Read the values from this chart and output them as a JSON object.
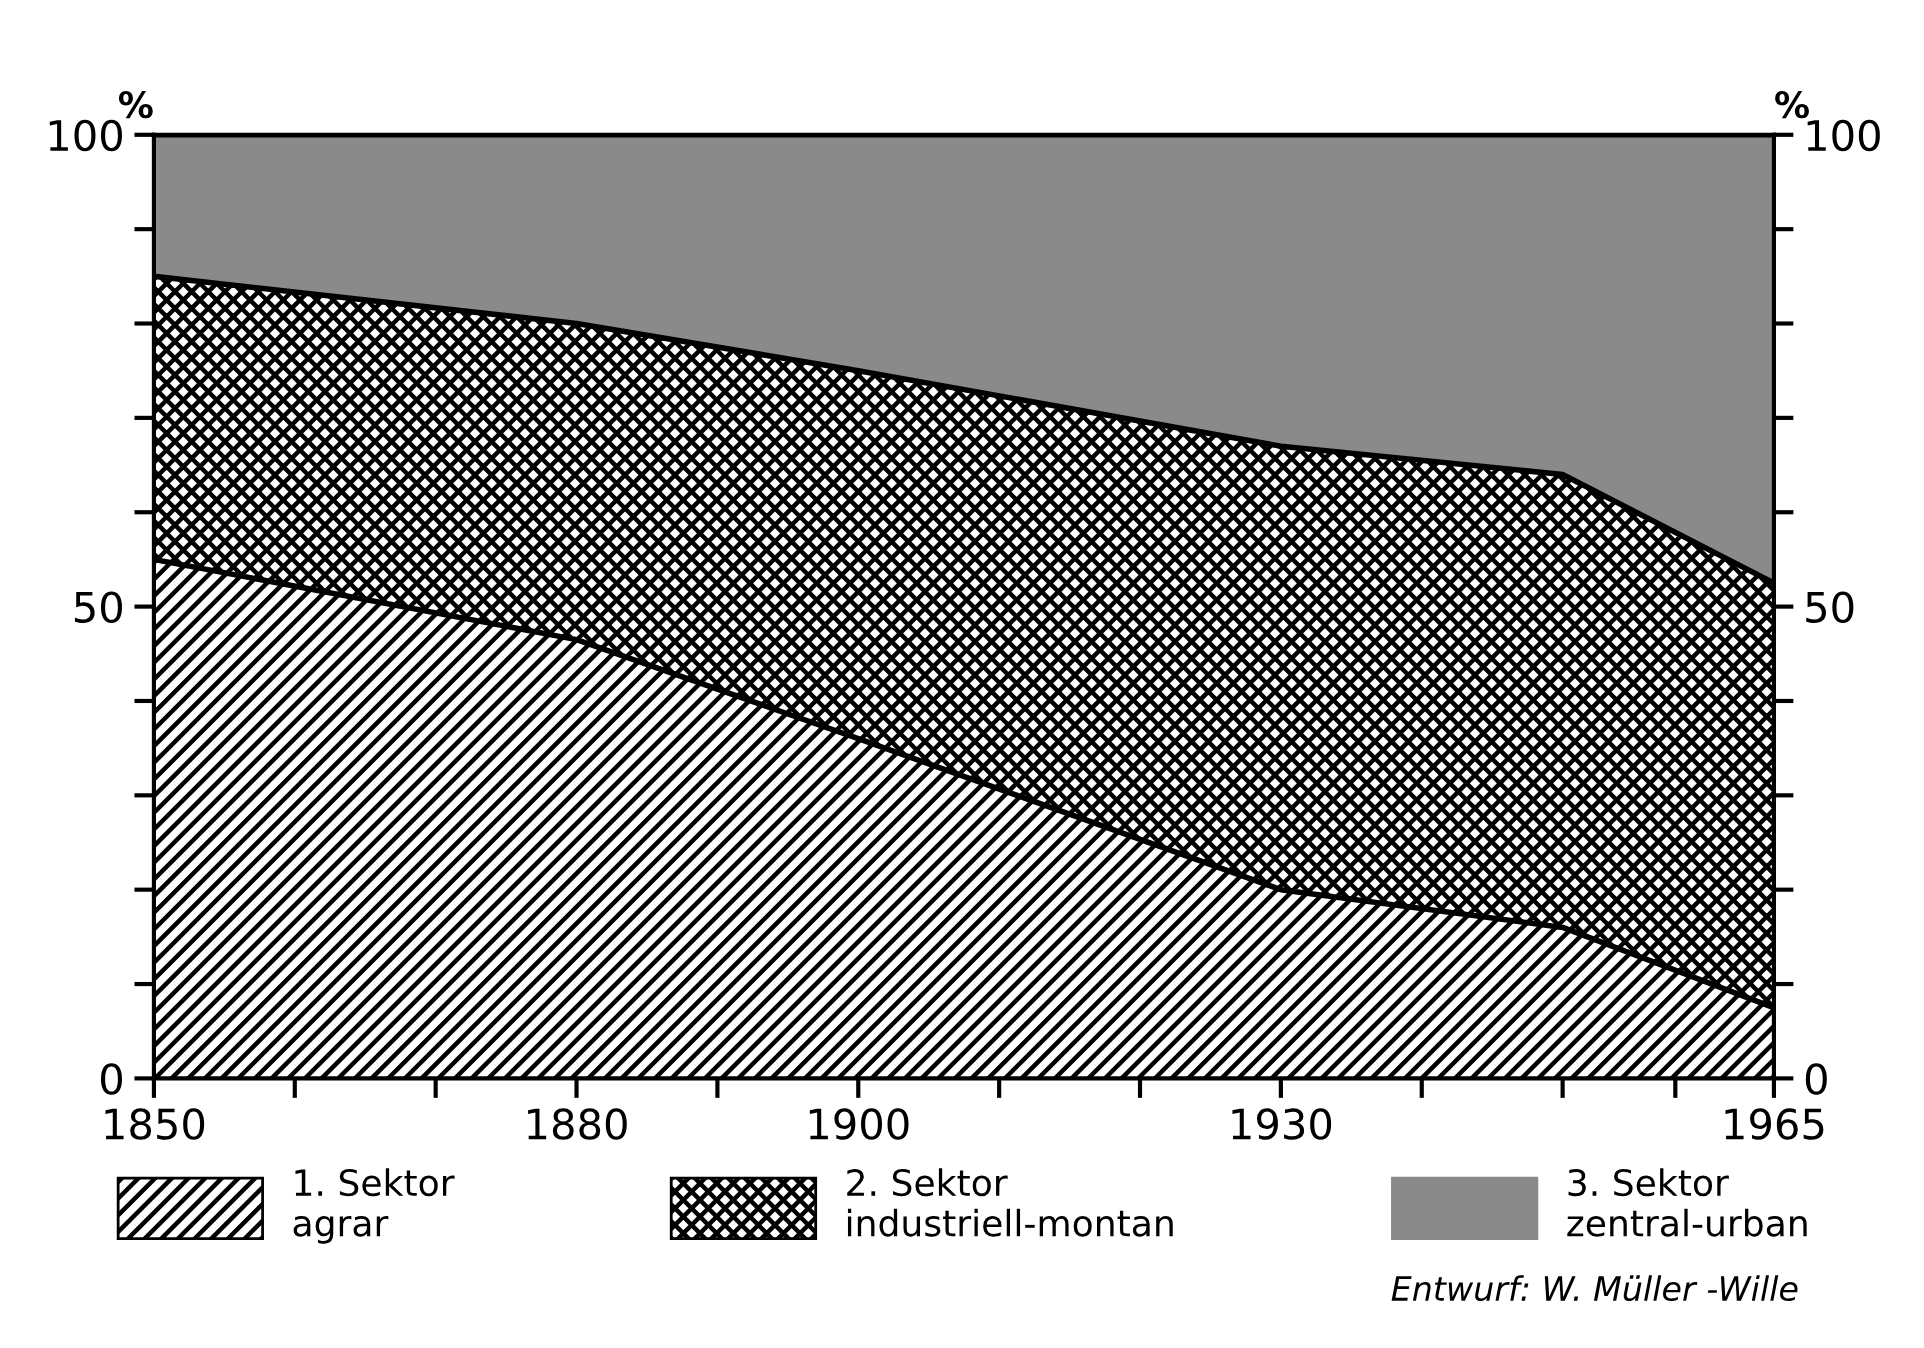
{
  "chart_data": {
    "type": "area",
    "stacked": true,
    "x": [
      1850,
      1880,
      1900,
      1930,
      1950,
      1965
    ],
    "series": [
      {
        "name": "1. Sektor\nagrar",
        "color": "#000000",
        "values": [
          55,
          46.5,
          36,
          20,
          16,
          7.5
        ]
      },
      {
        "name": "2. Sektor\nindustriell-montan",
        "color": "#000000",
        "values": [
          30,
          33.5,
          39,
          47,
          48,
          45
        ]
      },
      {
        "name": "3. Sektor\nzentral-urban",
        "color": "#8a8a8a",
        "values": [
          15,
          20,
          25,
          33,
          36,
          47.5
        ]
      }
    ],
    "xlim": [
      1850,
      1965
    ],
    "xticks": [
      1850,
      {
        "value": 1860,
        "label": null
      },
      {
        "value": 1870,
        "label": null
      },
      1880,
      {
        "value": 1890,
        "label": null
      },
      1900,
      {
        "value": 1910,
        "label": null
      },
      {
        "value": 1920,
        "label": null
      },
      1930,
      {
        "value": 1940,
        "label": null
      },
      {
        "value": 1950,
        "label": null
      },
      {
        "value": 1958,
        "label": null
      },
      1965
    ],
    "ylim": [
      0,
      100
    ],
    "yticks": [
      0,
      {
        "value": 10,
        "label": null
      },
      {
        "value": 20,
        "label": null
      },
      {
        "value": 30,
        "label": null
      },
      {
        "value": 40,
        "label": null
      },
      50,
      {
        "value": 60,
        "label": null
      },
      {
        "value": 70,
        "label": null
      },
      {
        "value": 80,
        "label": null
      },
      {
        "value": 90,
        "label": null
      },
      100
    ],
    "y2lim": [
      0,
      100
    ],
    "y2ticks": [
      0,
      {
        "value": 10,
        "label": null
      },
      {
        "value": 20,
        "label": null
      },
      {
        "value": 30,
        "label": null
      },
      {
        "value": 40,
        "label": null
      },
      50,
      {
        "value": 60,
        "label": null
      },
      {
        "value": 70,
        "label": null
      },
      {
        "value": 80,
        "label": null
      },
      {
        "value": 90,
        "label": null
      },
      100
    ],
    "ylabel": "%",
    "y2label": "%",
    "legend": "bottom",
    "annotations": [
      "Entwurf: W. Müller -Wille"
    ]
  }
}
